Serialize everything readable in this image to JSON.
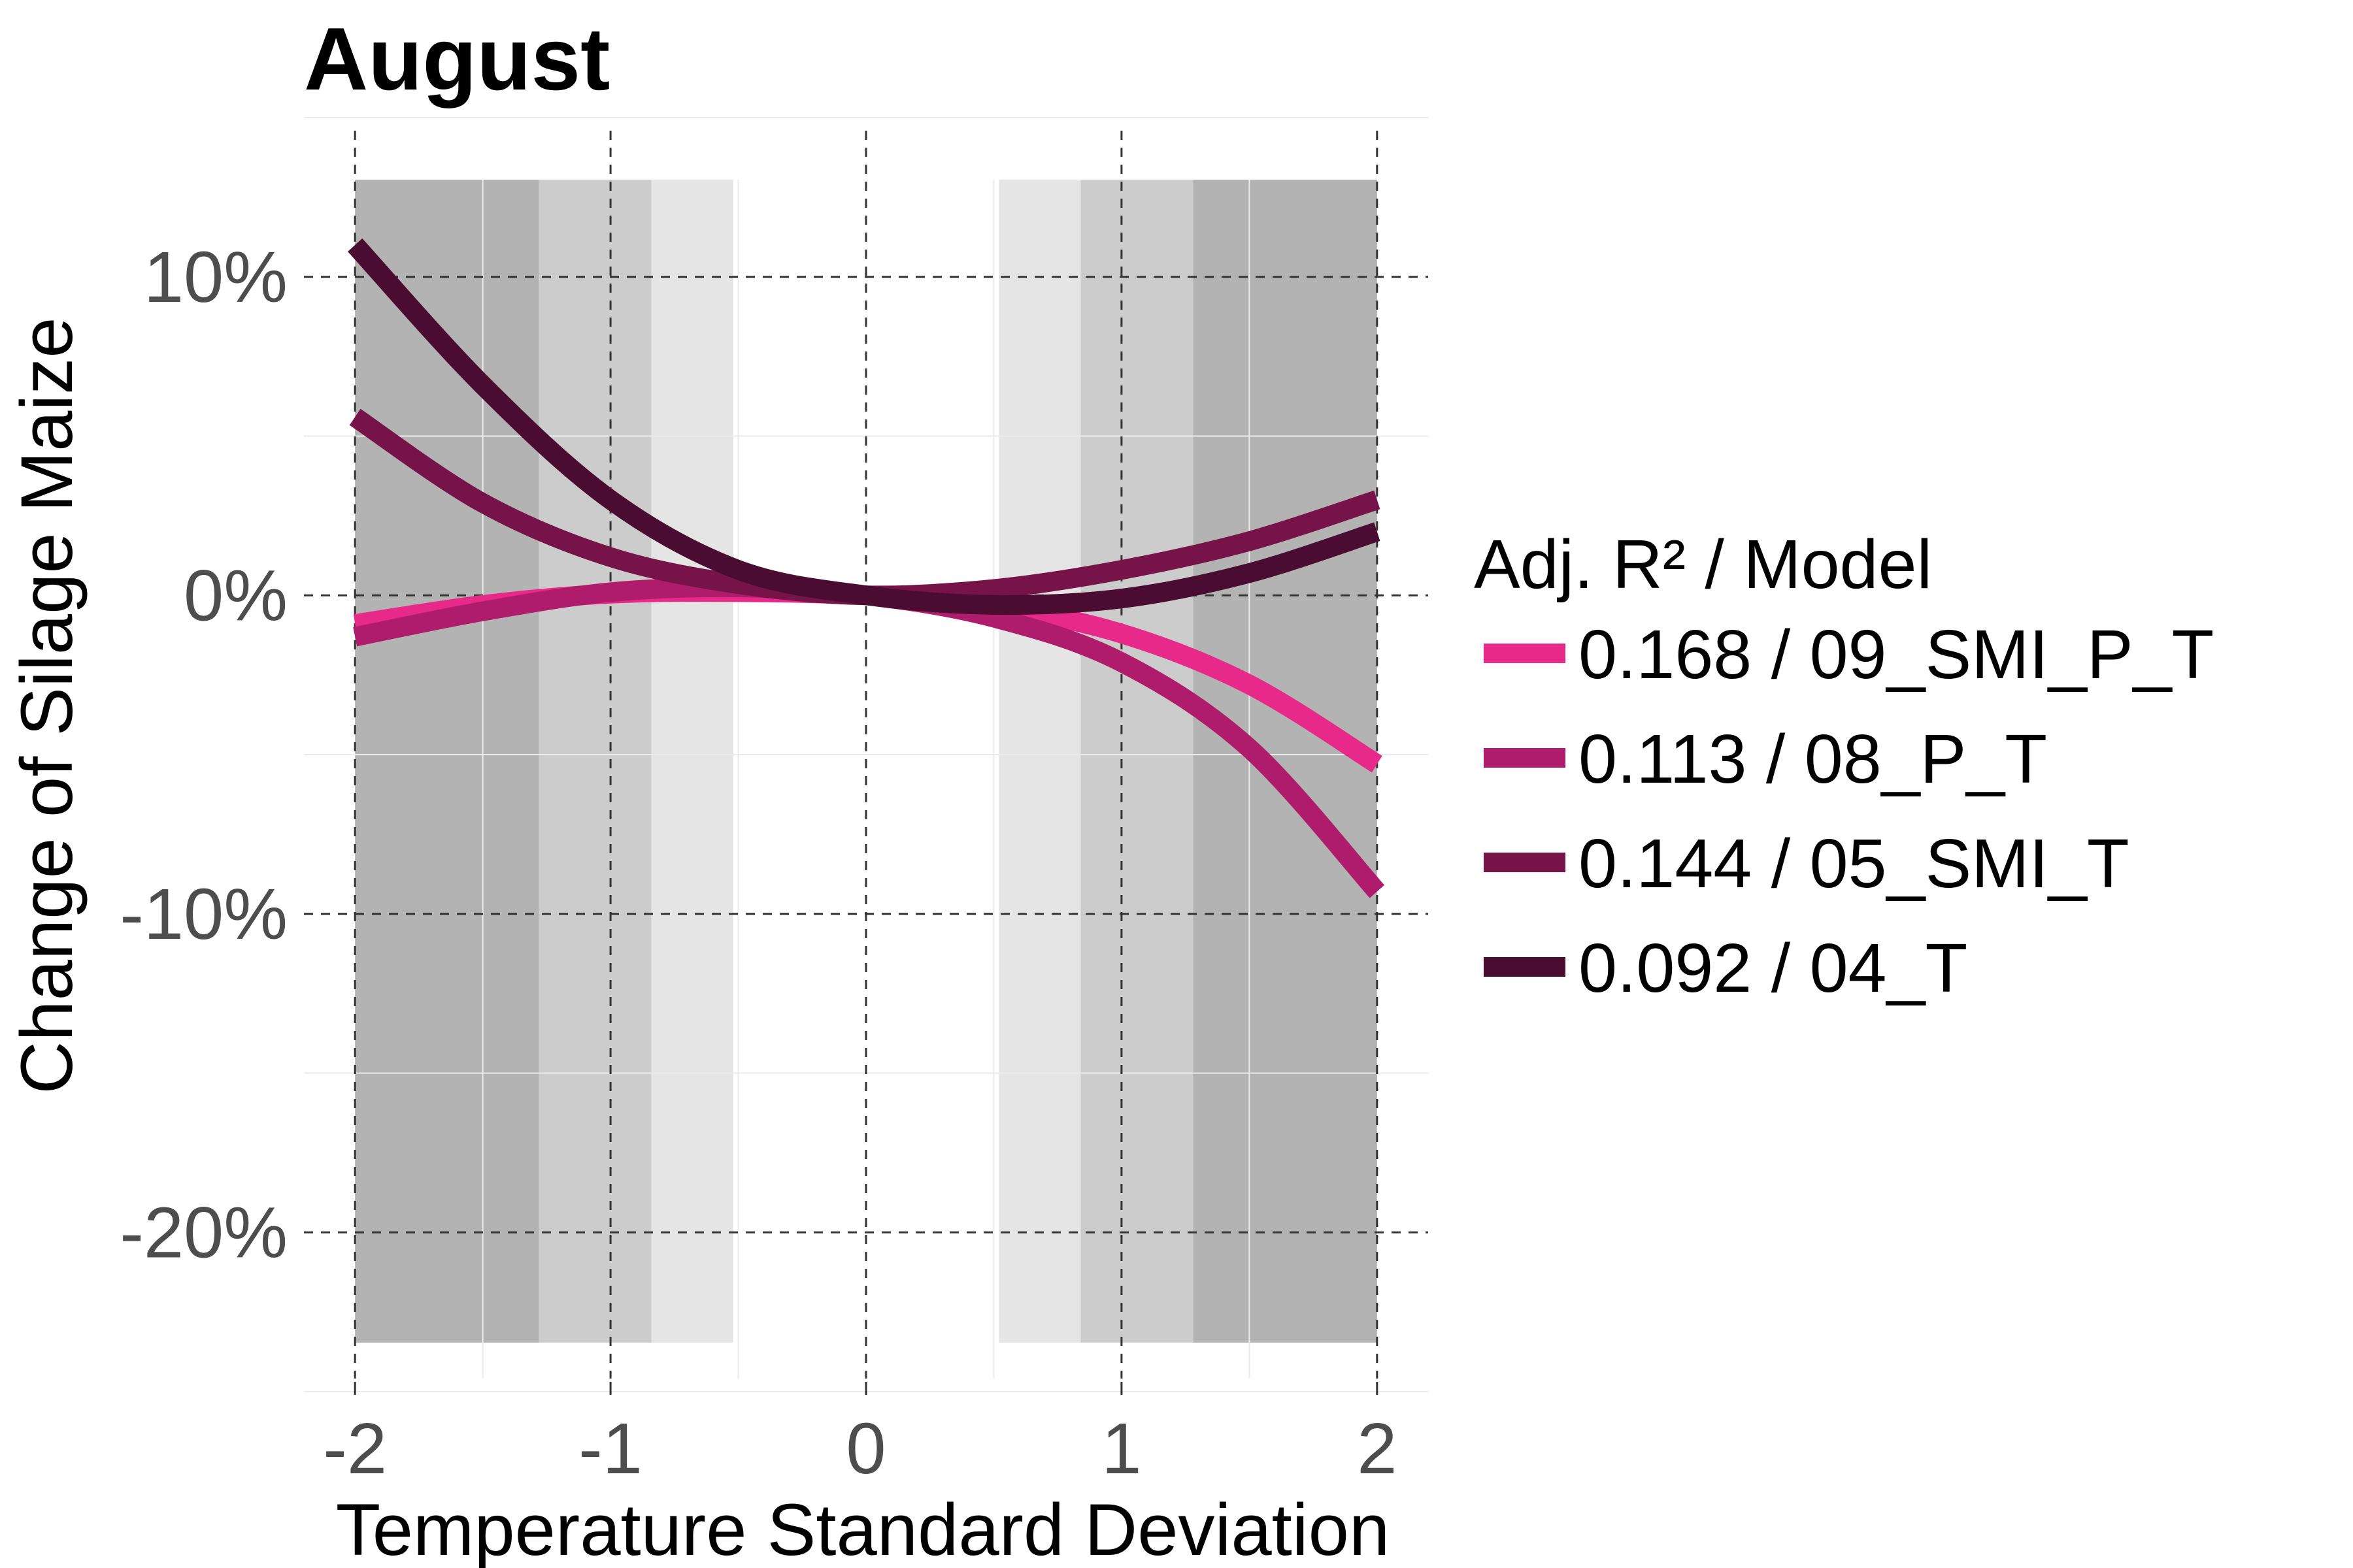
{
  "chart_data": {
    "type": "line",
    "title": "August",
    "xlabel": "Temperature Standard Deviation",
    "ylabel": "Change of Silage Maize",
    "xlim": [
      -2.2,
      2.2
    ],
    "ylim": [
      -25,
      15
    ],
    "x_ticks": [
      -2,
      -1,
      0,
      1,
      2
    ],
    "x_tick_labels": [
      "-2",
      "-1",
      "0",
      "1",
      "2"
    ],
    "y_ticks": [
      10,
      0,
      -10,
      -20
    ],
    "y_tick_labels": [
      "10%",
      "0%",
      "-10%",
      "-20%"
    ],
    "grid": true,
    "legend_position": "right",
    "legend_title": "Adj. R² / Model",
    "shaded_bands": [
      {
        "from": -2,
        "to": -1.28,
        "level": "dark"
      },
      {
        "from": -1.28,
        "to": -0.84,
        "level": "medium"
      },
      {
        "from": -0.84,
        "to": -0.52,
        "level": "light"
      },
      {
        "from": 0.52,
        "to": 0.84,
        "level": "light"
      },
      {
        "from": 0.84,
        "to": 1.28,
        "level": "medium"
      },
      {
        "from": 1.28,
        "to": 2,
        "level": "dark"
      }
    ],
    "band_colors": {
      "dark": "#b3b3b3",
      "medium": "#cccccc",
      "light": "#e5e5e5"
    },
    "series": [
      {
        "name": "0.168 / 09_SMI_P_T",
        "color": "#e7298a",
        "x": [
          -2,
          -1.5,
          -1,
          -0.5,
          0,
          0.5,
          1,
          1.5,
          2
        ],
        "y": [
          -0.9,
          -0.3,
          0.05,
          0.1,
          0,
          -0.35,
          -1.2,
          -2.8,
          -5.3
        ]
      },
      {
        "name": "0.113 / 08_P_T",
        "color": "#ae1c6b",
        "x": [
          -2,
          -1.5,
          -1,
          -0.5,
          0,
          0.5,
          1,
          1.5,
          2
        ],
        "y": [
          -1.3,
          -0.5,
          0.1,
          0.25,
          0,
          -0.7,
          -2.1,
          -4.8,
          -9.3
        ]
      },
      {
        "name": "0.144 / 05_SMI_T",
        "color": "#761348",
        "x": [
          -2,
          -1.5,
          -1,
          -0.5,
          0,
          0.5,
          1,
          1.5,
          2
        ],
        "y": [
          5.6,
          2.9,
          1.2,
          0.35,
          0,
          0.2,
          0.8,
          1.7,
          3.0
        ]
      },
      {
        "name": "0.092 / 04_T",
        "color": "#4a0c30",
        "x": [
          -2,
          -1.5,
          -1,
          -0.5,
          0,
          0.5,
          1,
          1.5,
          2
        ],
        "y": [
          11.0,
          6.6,
          3.0,
          0.8,
          0,
          -0.3,
          -0.1,
          0.7,
          2.0
        ]
      }
    ]
  }
}
